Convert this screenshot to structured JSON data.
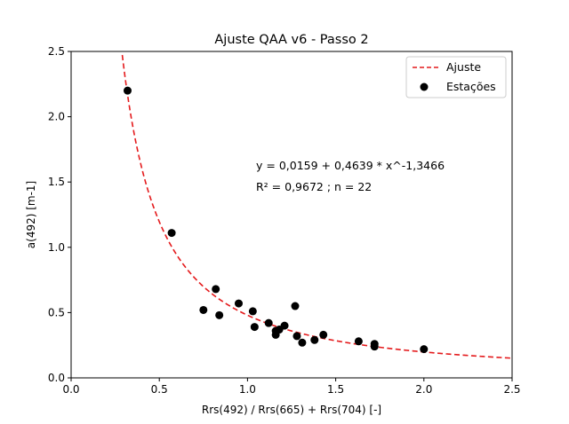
{
  "chart_data": {
    "type": "scatter",
    "title": "Ajuste QAA v6 - Passo 2",
    "xlabel": "Rrs(492) / Rrs(665) + Rrs(704) [-]",
    "ylabel": "a(492) [m-1]",
    "xlim": [
      0.0,
      2.5
    ],
    "ylim": [
      0.0,
      2.5
    ],
    "xticks": [
      "0.0",
      "0.5",
      "1.0",
      "1.5",
      "2.0",
      "2.5"
    ],
    "yticks": [
      "0.0",
      "0.5",
      "1.0",
      "1.5",
      "2.0",
      "2.5"
    ],
    "grid": false,
    "legend_position": "top-right",
    "annotations": [
      "y = 0,0159 + 0,4639 * x^-1,3466",
      "R² = 0,9672 ; n = 22"
    ],
    "fit": {
      "name": "Ajuste",
      "style": "dashed",
      "color": "#e41a1c",
      "a": 0.0159,
      "b": 0.4639,
      "c": -1.3466
    },
    "series": [
      {
        "name": "Estações",
        "color": "#000000",
        "points": [
          [
            0.32,
            2.2
          ],
          [
            0.57,
            1.11
          ],
          [
            0.75,
            0.52
          ],
          [
            0.82,
            0.68
          ],
          [
            0.84,
            0.48
          ],
          [
            0.95,
            0.57
          ],
          [
            1.03,
            0.51
          ],
          [
            1.04,
            0.39
          ],
          [
            1.12,
            0.42
          ],
          [
            1.16,
            0.36
          ],
          [
            1.16,
            0.33
          ],
          [
            1.18,
            0.37
          ],
          [
            1.21,
            0.4
          ],
          [
            1.27,
            0.55
          ],
          [
            1.28,
            0.32
          ],
          [
            1.31,
            0.27
          ],
          [
            1.38,
            0.29
          ],
          [
            1.43,
            0.33
          ],
          [
            1.63,
            0.28
          ],
          [
            1.72,
            0.26
          ],
          [
            1.72,
            0.24
          ],
          [
            2.0,
            0.22
          ]
        ]
      }
    ]
  }
}
